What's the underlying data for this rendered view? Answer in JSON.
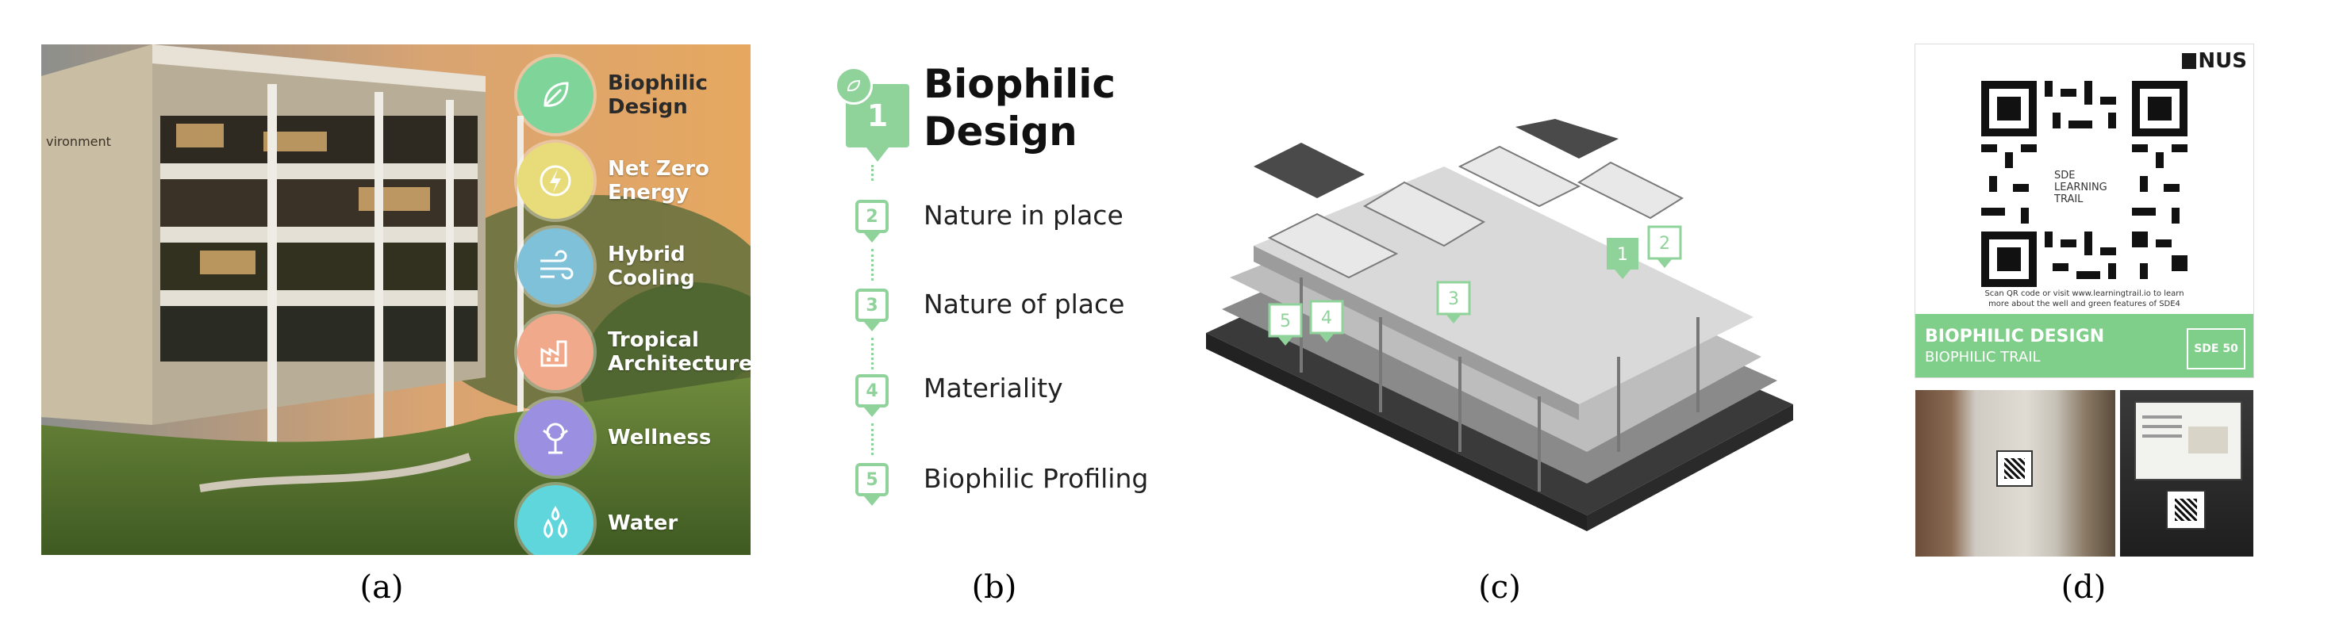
{
  "captions": [
    "(a)",
    "(b)",
    "(c)",
    "(d)"
  ],
  "panel_a": {
    "building_sign": "vironment",
    "categories": [
      {
        "label_line1": "Biophilic",
        "label_line2": "Design",
        "color": "#7fd49a",
        "icon": "leaf-icon"
      },
      {
        "label_line1": "Net Zero",
        "label_line2": "Energy",
        "color": "#e8dc7a",
        "icon": "lightning-icon"
      },
      {
        "label_line1": "Hybrid",
        "label_line2": "Cooling",
        "color": "#7fc1d9",
        "icon": "wind-icon"
      },
      {
        "label_line1": "Tropical",
        "label_line2": "Architecture",
        "color": "#f0a98a",
        "icon": "factory-icon"
      },
      {
        "label_line1": "Wellness",
        "label_line2": "",
        "color": "#9a8fe0",
        "icon": "tree-icon"
      },
      {
        "label_line1": "Water",
        "label_line2": "",
        "color": "#5ed6dc",
        "icon": "droplets-icon"
      }
    ]
  },
  "panel_b": {
    "title_line1": "Biophilic",
    "title_line2": "Design",
    "header_number": "1",
    "steps": [
      {
        "number": "2",
        "label": "Nature in place"
      },
      {
        "number": "3",
        "label": "Nature of place"
      },
      {
        "number": "4",
        "label": "Materiality"
      },
      {
        "number": "5",
        "label": "Biophilic Profiling"
      }
    ],
    "accent_color": "#8fd39b"
  },
  "panel_c": {
    "markers": [
      "1",
      "2",
      "3",
      "4",
      "5"
    ],
    "marker_color": "#8fd39b"
  },
  "panel_d": {
    "logo_text": "NUS",
    "qr_text_line1": "SDE",
    "qr_text_line2": "LEARNING",
    "qr_text_line3": "TRAIL",
    "scan_text": "Scan QR code or visit www.learningtrail.io to learn",
    "scan_text2": "more about the well and green features of SDE4",
    "banner_title": "BIOPHILIC DESIGN",
    "banner_sub": "BIOPHILIC TRAIL",
    "banner_badge": "SDE 50",
    "banner_color": "#7fcf8a"
  }
}
